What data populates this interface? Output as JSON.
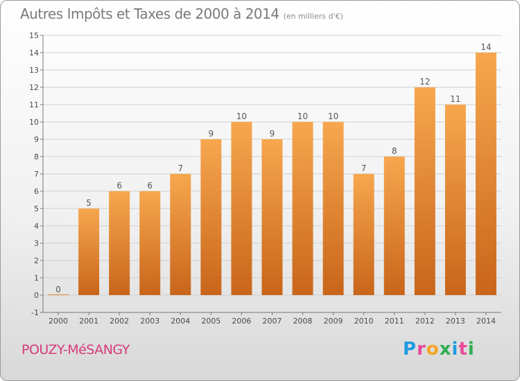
{
  "header": {
    "title": "Autres Impôts et Taxes de 2000 à 2014",
    "unit_note": "(en milliers d'€)"
  },
  "footer": {
    "commune": "POUZY-MéSANGY",
    "logo_letters": [
      "P",
      "r",
      "o",
      "x",
      "i",
      "t",
      "i"
    ],
    "logo_colors": [
      "#1e9be0",
      "#e84a9a",
      "#f5a623",
      "#2fae4e",
      "#1e9be0",
      "#e84a9a",
      "#2fae4e"
    ]
  },
  "colors": {
    "bar_top": "#f7a74f",
    "bar_bottom": "#c8651a",
    "grid": "#cfcfcf",
    "axis": "#777777"
  },
  "chart_data": {
    "type": "bar",
    "categories": [
      "2000",
      "2001",
      "2002",
      "2003",
      "2004",
      "2005",
      "2006",
      "2007",
      "2008",
      "2009",
      "2010",
      "2011",
      "2012",
      "2013",
      "2014"
    ],
    "values": [
      0,
      5,
      6,
      6,
      7,
      9,
      10,
      9,
      10,
      10,
      7,
      8,
      12,
      11,
      14
    ],
    "value_labels": [
      "0",
      "5",
      "6",
      "6",
      "7",
      "9",
      "10",
      "9",
      "10",
      "10",
      "7",
      "8",
      "12",
      "11",
      "14"
    ],
    "yticks": [
      -1,
      0,
      1,
      2,
      3,
      4,
      5,
      6,
      7,
      8,
      9,
      10,
      11,
      12,
      13,
      14,
      15
    ],
    "ylim": [
      -1,
      15
    ],
    "grid": true
  }
}
